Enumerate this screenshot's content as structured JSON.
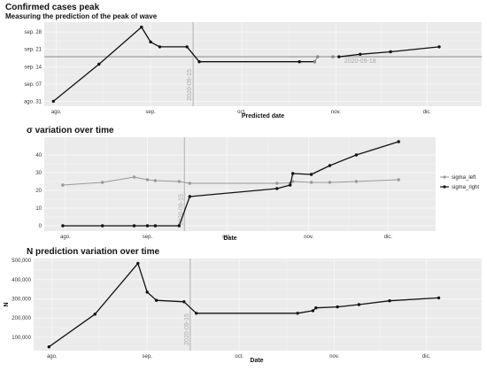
{
  "colors": {
    "background": "#ffffff",
    "panel": "#ebebeb",
    "grid": "#f7f7f7",
    "dark": "#111111",
    "light": "#888888",
    "vline": "#bbbbbb",
    "hline": "#aaaaaa"
  },
  "chart_data": [
    {
      "id": "p1",
      "type": "line",
      "title": "Confirmed cases peak",
      "subtitle": "Measuring the prediction of the peak of wave",
      "xlabel": "Predicted date",
      "ylabel": "",
      "x_ticks": [
        {
          "value": "2020-08-01",
          "label": "ago."
        },
        {
          "value": "2020-09-01",
          "label": "sep."
        },
        {
          "value": "2020-10-01",
          "label": "oct."
        },
        {
          "value": "2020-11-01",
          "label": "nov."
        },
        {
          "value": "2020-12-01",
          "label": "dic."
        }
      ],
      "y_ticks": [
        {
          "value": "2020-08-31",
          "label": "ago. 31"
        },
        {
          "value": "2020-09-07",
          "label": "sep. 07"
        },
        {
          "value": "2020-09-14",
          "label": "sep. 14"
        },
        {
          "value": "2020-09-21",
          "label": "sep. 21"
        },
        {
          "value": "2020-09-28",
          "label": "sep. 28"
        }
      ],
      "xlim": [
        "2020-07-28",
        "2020-12-19"
      ],
      "ylim": [
        "2020-08-29",
        "2020-10-02"
      ],
      "vline": {
        "x": "2020-09-15",
        "label": "2020-09-15"
      },
      "hline": {
        "y": "2020-09-18",
        "label": "2020-09-18"
      },
      "series": [
        {
          "color": "#111111",
          "x": [
            "2020-07-31",
            "2020-08-15",
            "2020-08-29",
            "2020-09-01",
            "2020-09-04",
            "2020-09-13",
            "2020-09-17",
            "2020-10-20",
            "2020-10-25"
          ],
          "y": [
            "2020-08-31",
            "2020-09-15",
            "2020-09-30",
            "2020-09-24",
            "2020-09-22",
            "2020-09-22",
            "2020-09-16",
            "2020-09-16",
            "2020-09-16"
          ]
        },
        {
          "color": "#888888",
          "x": [
            "2020-10-25",
            "2020-10-26"
          ],
          "y": [
            "2020-09-16",
            "2020-09-18"
          ]
        },
        {
          "color": "#111111",
          "x": [
            "2020-11-02",
            "2020-11-09",
            "2020-11-19",
            "2020-12-05"
          ],
          "y": [
            "2020-09-18",
            "2020-09-19",
            "2020-09-20",
            "2020-09-22"
          ]
        },
        {
          "color": "#888888",
          "x": [
            "2020-10-31"
          ],
          "y": [
            "2020-09-18"
          ]
        }
      ]
    },
    {
      "id": "p2",
      "type": "line",
      "title": "σ variation over time",
      "xlabel": "Date",
      "ylabel": "",
      "x_ticks": [
        {
          "value": "2020-08-01",
          "label": "ago."
        },
        {
          "value": "2020-09-01",
          "label": "sep."
        },
        {
          "value": "2020-10-01",
          "label": "oct."
        },
        {
          "value": "2020-11-01",
          "label": "nov."
        },
        {
          "value": "2020-12-01",
          "label": "dic."
        }
      ],
      "y_ticks": [
        0,
        10,
        20,
        30,
        40
      ],
      "xlim": [
        "2020-07-24",
        "2020-12-19"
      ],
      "ylim": [
        -3,
        50
      ],
      "vline": {
        "x": "2020-09-15",
        "label": "2020-09-15"
      },
      "legend_position": "right",
      "series": [
        {
          "name": "sigma_left",
          "color": "#999999",
          "x": [
            "2020-07-31",
            "2020-08-15",
            "2020-08-27",
            "2020-09-01",
            "2020-09-04",
            "2020-09-13",
            "2020-09-17",
            "2020-10-20",
            "2020-10-25",
            "2020-10-26",
            "2020-11-02",
            "2020-11-09",
            "2020-11-19",
            "2020-12-05"
          ],
          "y": [
            23,
            24.5,
            27.5,
            26,
            25.5,
            25,
            24,
            24,
            24.2,
            25,
            24.5,
            24.5,
            25,
            26
          ]
        },
        {
          "name": "sigma_right",
          "color": "#111111",
          "x": [
            "2020-07-31",
            "2020-08-15",
            "2020-08-27",
            "2020-09-01",
            "2020-09-04",
            "2020-09-13",
            "2020-09-17",
            "2020-10-20",
            "2020-10-25",
            "2020-10-26",
            "2020-11-02",
            "2020-11-09",
            "2020-11-19",
            "2020-12-05"
          ],
          "y": [
            0,
            0,
            0,
            0,
            0,
            0,
            16.5,
            21,
            23,
            29.5,
            29,
            34,
            40,
            47.5
          ]
        }
      ]
    },
    {
      "id": "p3",
      "type": "line",
      "title": "N prediction variation over time",
      "xlabel": "Date",
      "ylabel": "N",
      "x_ticks": [
        {
          "value": "2020-08-01",
          "label": "ago."
        },
        {
          "value": "2020-09-01",
          "label": "sep."
        },
        {
          "value": "2020-10-01",
          "label": "oct."
        },
        {
          "value": "2020-11-01",
          "label": "nov."
        },
        {
          "value": "2020-12-01",
          "label": "dic."
        }
      ],
      "y_ticks": [
        {
          "value": 100000,
          "label": "100,000"
        },
        {
          "value": 200000,
          "label": "200,000"
        },
        {
          "value": 300000,
          "label": "300,000"
        },
        {
          "value": 400000,
          "label": "400,000"
        },
        {
          "value": 500000,
          "label": "500,000"
        }
      ],
      "xlim": [
        "2020-07-26",
        "2020-12-19"
      ],
      "ylim": [
        30000,
        510000
      ],
      "vline": {
        "x": "2020-09-15",
        "label": "2020-09-15"
      },
      "series": [
        {
          "color": "#111111",
          "x": [
            "2020-07-31",
            "2020-08-15",
            "2020-08-29",
            "2020-09-01",
            "2020-09-04",
            "2020-09-13",
            "2020-09-17",
            "2020-10-20",
            "2020-10-25",
            "2020-10-26",
            "2020-11-02",
            "2020-11-09",
            "2020-11-19",
            "2020-12-05"
          ],
          "y": [
            50000,
            220000,
            485000,
            335000,
            292000,
            285000,
            225000,
            225000,
            238000,
            253000,
            258000,
            270000,
            290000,
            305000
          ]
        }
      ]
    }
  ]
}
